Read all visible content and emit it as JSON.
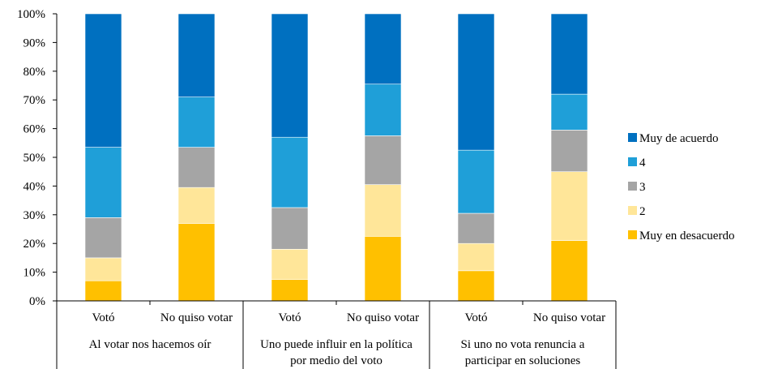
{
  "chart_data": {
    "type": "bar",
    "stacked": true,
    "percent": true,
    "groups": [
      {
        "label_lines": [
          "Al votar nos hacemos oír"
        ]
      },
      {
        "label_lines": [
          "Uno puede influir en la política",
          "por medio del voto"
        ]
      },
      {
        "label_lines": [
          "Si uno no vota renuncia a",
          "participar en soluciones"
        ]
      }
    ],
    "categories": [
      "Votó",
      "No quiso votar",
      "Votó",
      "No quiso votar",
      "Votó",
      "No quiso votar"
    ],
    "series": [
      {
        "name": "Muy en desacuerdo",
        "color": "#FFC000",
        "values": [
          7,
          27,
          7.5,
          22.5,
          10.5,
          21
        ]
      },
      {
        "name": "2",
        "color": "#FFE699",
        "values": [
          8,
          12.5,
          10.5,
          18,
          9.5,
          24
        ]
      },
      {
        "name": "3",
        "color": "#A5A5A5",
        "values": [
          14,
          14,
          14.5,
          17,
          10.5,
          14.5
        ]
      },
      {
        "name": "4",
        "color": "#1F9FD8",
        "values": [
          24.5,
          17.5,
          24.5,
          18,
          22,
          12.5
        ]
      },
      {
        "name": "Muy de acuerdo",
        "color": "#0070C0",
        "values": [
          46.5,
          29,
          43,
          24.5,
          47.5,
          28
        ]
      }
    ],
    "y_ticks": [
      "0%",
      "10%",
      "20%",
      "30%",
      "40%",
      "50%",
      "60%",
      "70%",
      "80%",
      "90%",
      "100%"
    ],
    "ylim": [
      0,
      100
    ],
    "grid": false,
    "legend_position": "right",
    "legend_order": [
      "Muy de acuerdo",
      "4",
      "3",
      "2",
      "Muy en desacuerdo"
    ]
  }
}
